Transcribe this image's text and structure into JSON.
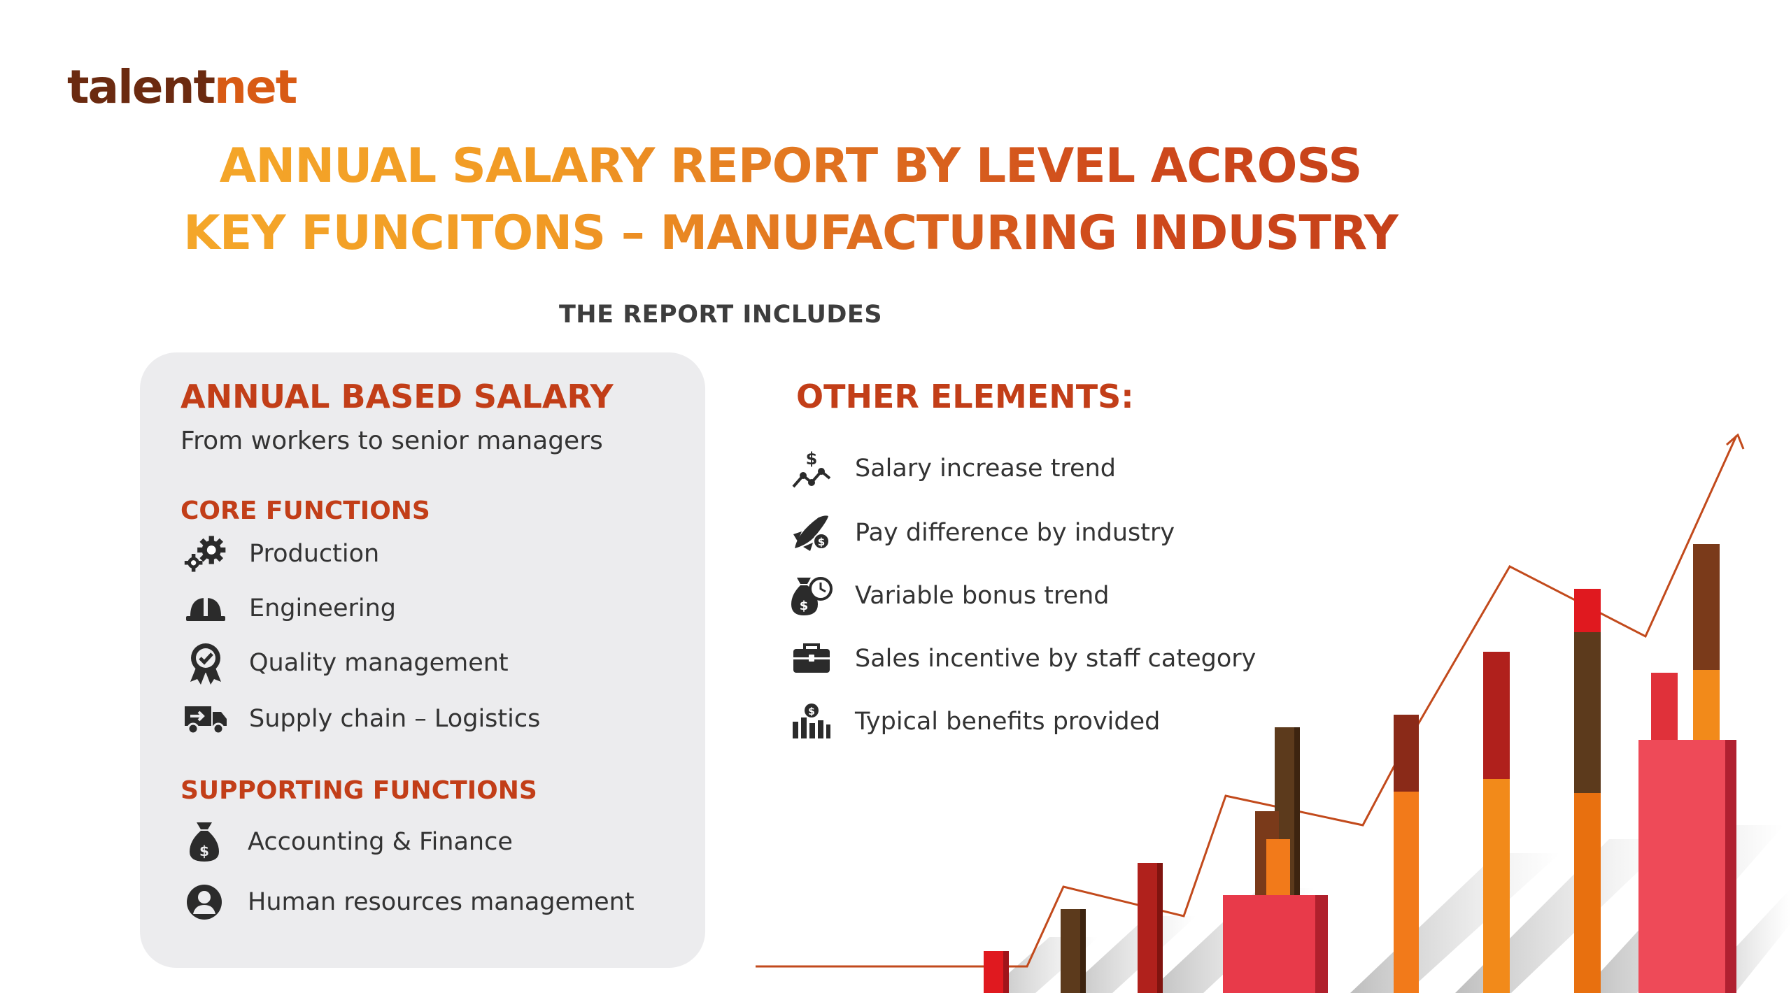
{
  "brand": {
    "part1": "talent",
    "part2": "net"
  },
  "title": {
    "line1": "ANNUAL SALARY REPORT BY LEVEL ACROSS",
    "line2": "KEY FUNCITONS – MANUFACTURING INDUSTRY"
  },
  "includes_label": "THE REPORT INCLUDES",
  "left": {
    "heading": "ANNUAL BASED SALARY",
    "subtitle": "From workers to senior managers",
    "core": {
      "heading": "CORE FUNCTIONS",
      "items": [
        {
          "icon": "gears-icon",
          "label": "Production"
        },
        {
          "icon": "hard-hat-icon",
          "label": "Engineering"
        },
        {
          "icon": "award-badge-icon",
          "label": "Quality management"
        },
        {
          "icon": "delivery-truck-icon",
          "label": "Supply chain – Logistics"
        }
      ]
    },
    "supporting": {
      "heading": "SUPPORTING FUNCTIONS",
      "items": [
        {
          "icon": "money-bag-icon",
          "label": "Accounting & Finance"
        },
        {
          "icon": "user-circle-icon",
          "label": "Human resources management"
        }
      ]
    }
  },
  "right": {
    "heading": "OTHER ELEMENTS:",
    "items": [
      {
        "icon": "dollar-trend-icon",
        "label": "Salary increase trend"
      },
      {
        "icon": "rocket-dollar-icon",
        "label": "Pay difference by industry"
      },
      {
        "icon": "money-bag-clock-icon",
        "label": "Variable bonus trend"
      },
      {
        "icon": "briefcase-icon",
        "label": "Sales incentive by staff category"
      },
      {
        "icon": "benefits-chart-icon",
        "label": "Typical benefits provided"
      }
    ]
  },
  "colors": {
    "accent_orange": "#f19a24",
    "accent_red": "#c23e18",
    "icon_dark": "#2b2b2b",
    "panel": "#ececee"
  }
}
